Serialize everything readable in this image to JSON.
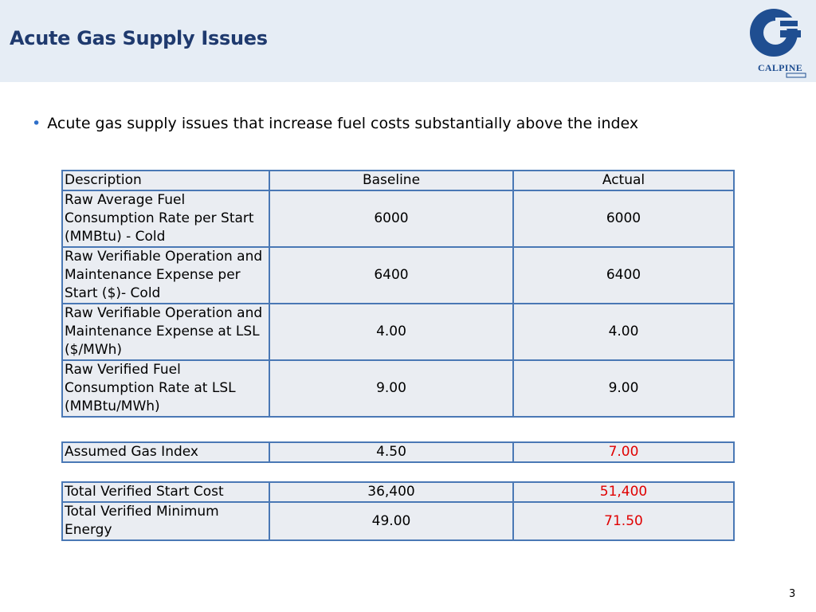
{
  "slide": {
    "title": "Acute Gas Supply Issues",
    "logo_text": "CALPINE",
    "page_number": "3"
  },
  "bullet": {
    "text": "Acute gas supply issues that increase fuel costs substantially above the index"
  },
  "main_table": {
    "headers": [
      "Description",
      "Baseline",
      "Actual"
    ],
    "rows": [
      {
        "description": "Raw Average Fuel Consumption Rate per Start (MMBtu) - Cold",
        "baseline": "6000",
        "actual": "6000"
      },
      {
        "description": "Raw Verifiable Operation and Maintenance Expense per Start ($)- Cold",
        "baseline": "6400",
        "actual": "6400"
      },
      {
        "description": "Raw Verifiable Operation and Maintenance Expense at LSL ($/MWh)",
        "baseline": "4.00",
        "actual": "4.00"
      },
      {
        "description": "Raw Verified Fuel Consumption Rate at LSL (MMBtu/MWh)",
        "baseline": "9.00",
        "actual": "9.00"
      }
    ]
  },
  "gas_table": {
    "rows": [
      {
        "description": "Assumed Gas Index",
        "baseline": "4.50",
        "actual": "7.00"
      }
    ]
  },
  "total_table": {
    "rows": [
      {
        "description": "Total Verified Start Cost",
        "baseline": "36,400",
        "actual": "51,400"
      },
      {
        "description": "Total Verified Minimum Energy",
        "baseline": "49.00",
        "actual": "71.50"
      }
    ]
  },
  "colors": {
    "title": "#1f3a6e",
    "header_band": "#e6edf5",
    "table_border": "#4a78b5",
    "highlight": "#e00000"
  }
}
